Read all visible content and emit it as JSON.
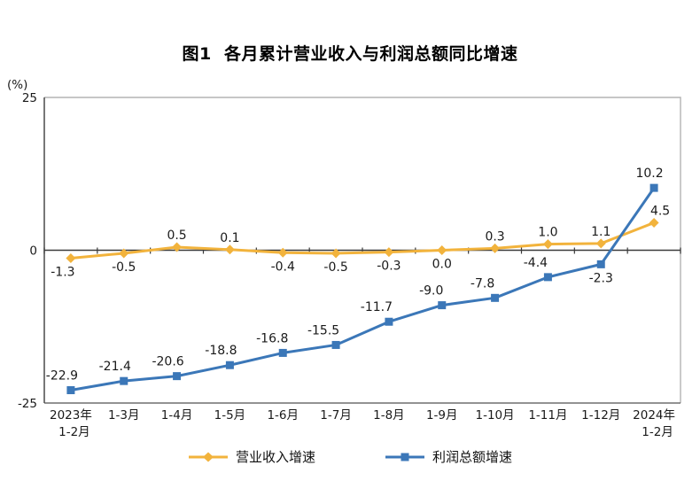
{
  "chart_data": {
    "type": "line",
    "title": "图1  各月累计营业收入与利润总额同比增速",
    "ylabel": "(%)",
    "ylim": [
      -25,
      25
    ],
    "yticks": [
      25,
      0,
      -25
    ],
    "grid": false,
    "legend_position": "bottom",
    "categories": [
      "2023年\n1-2月",
      "1-3月",
      "1-4月",
      "1-5月",
      "1-6月",
      "1-7月",
      "1-8月",
      "1-9月",
      "1-10月",
      "1-11月",
      "1-12月",
      "2024年\n1-2月"
    ],
    "series": [
      {
        "name": "营业收入增速",
        "color": "#F2B33C",
        "marker": "diamond",
        "values": [
          -1.3,
          -0.5,
          0.5,
          0.1,
          -0.4,
          -0.5,
          -0.3,
          0.0,
          0.3,
          1.0,
          1.1,
          4.5
        ],
        "label_side": [
          "below",
          "below",
          "above",
          "above",
          "below",
          "below",
          "below",
          "below",
          "above",
          "above",
          "above",
          "above"
        ],
        "label_dx": [
          -9,
          0,
          0,
          0,
          0,
          0,
          0,
          0,
          0,
          0,
          0,
          7
        ]
      },
      {
        "name": "利润总额增速",
        "color": "#3B77B8",
        "marker": "square",
        "values": [
          -22.9,
          -21.4,
          -20.6,
          -18.8,
          -16.8,
          -15.5,
          -11.7,
          -9.0,
          -7.8,
          -4.4,
          -2.3,
          10.2
        ],
        "label_side": [
          "above",
          "above",
          "above",
          "above",
          "above",
          "above",
          "above",
          "above",
          "above",
          "above",
          "below",
          "above"
        ],
        "label_dx": [
          -10,
          -10,
          -10,
          -10,
          -12,
          -14,
          -14,
          -12,
          -14,
          -14,
          0,
          -5
        ]
      }
    ]
  }
}
